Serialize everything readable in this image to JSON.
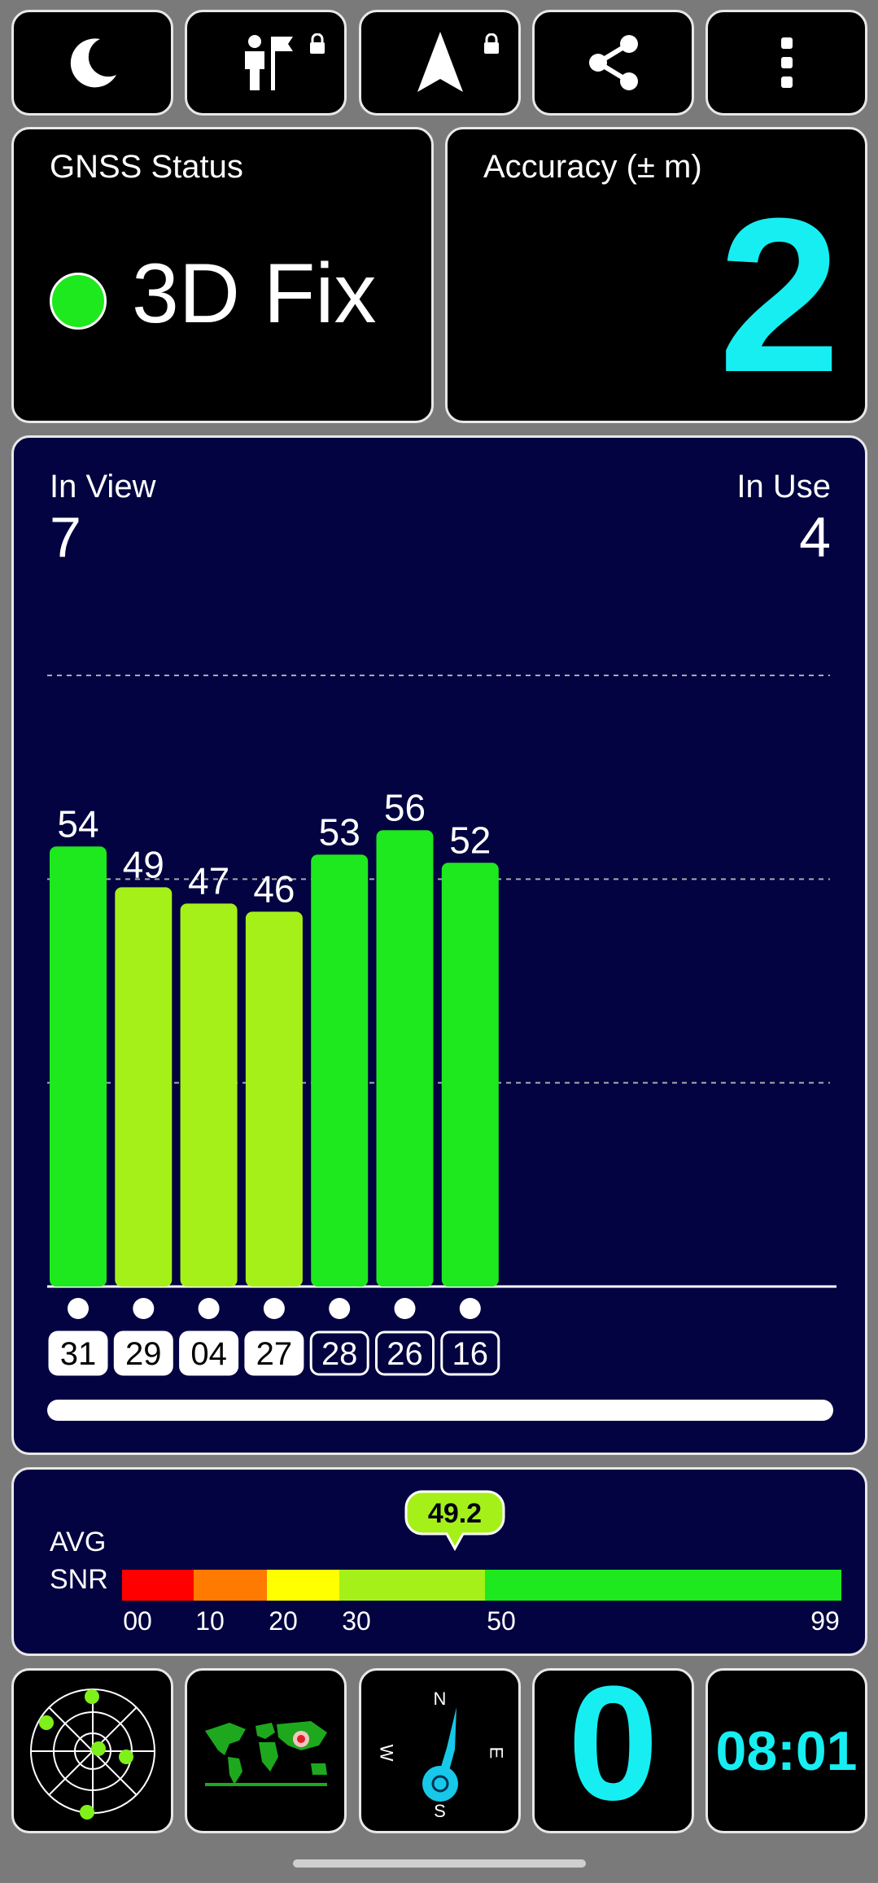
{
  "toolbar": {
    "icons": [
      "moon-icon",
      "location-flag-icon",
      "navigation-arrow-icon",
      "share-icon",
      "more-vert-icon"
    ]
  },
  "gnss_status": {
    "label": "GNSS Status",
    "value": "3D Fix",
    "color": "#1ee81e"
  },
  "accuracy": {
    "label": "Accuracy (± m)",
    "value": "2",
    "color": "#17eef2"
  },
  "satellites": {
    "in_view_label": "In View",
    "in_view_value": "7",
    "in_use_label": "In Use",
    "in_use_value": "4"
  },
  "chart_data": {
    "type": "bar",
    "categories": [
      "31",
      "29",
      "04",
      "27",
      "28",
      "26",
      "16"
    ],
    "values": [
      54,
      49,
      47,
      46,
      53,
      56,
      52
    ],
    "in_use": [
      true,
      true,
      true,
      true,
      false,
      false,
      false
    ],
    "colors": [
      "#1ee81e",
      "#a6f01a",
      "#a6f01a",
      "#a6f01a",
      "#1ee81e",
      "#1ee81e",
      "#1ee81e"
    ],
    "ylim": [
      0,
      75
    ],
    "gridlines": [
      25,
      50,
      75
    ]
  },
  "snr": {
    "label_line1": "AVG",
    "label_line2": "SNR",
    "avg_value": "49.2",
    "ticks": [
      "00",
      "10",
      "20",
      "30",
      "50",
      "99"
    ],
    "segment_colors": [
      "#ff0000",
      "#ff7a00",
      "#ffff00",
      "#a6f01a",
      "#1ee81e"
    ]
  },
  "bottom": {
    "speed": "0",
    "time": "08:01",
    "compass": {
      "n": "N",
      "e": "E",
      "s": "S",
      "w": "W"
    },
    "icons": [
      "radar-icon",
      "world-map-icon",
      "compass-icon"
    ]
  }
}
